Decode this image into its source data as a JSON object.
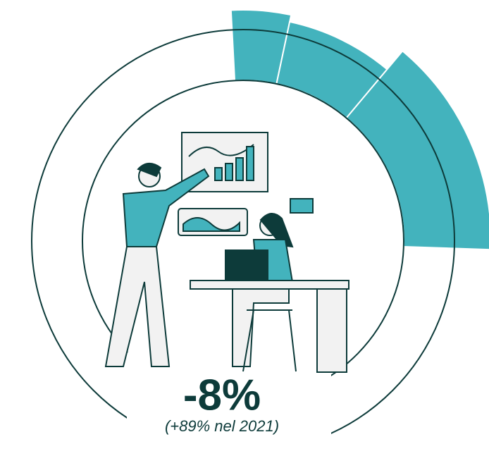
{
  "headline": "-8%",
  "note": "(+89% nel 2021)"
}
